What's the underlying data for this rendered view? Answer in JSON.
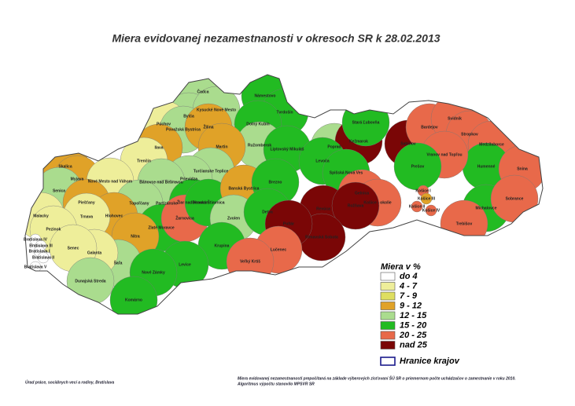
{
  "title": "Miera evidovanej nezamestnanosti v okresoch SR k 28.02.2013",
  "legend": {
    "title": "Miera v %",
    "items": [
      {
        "label": "do 4",
        "color": "#ffffff"
      },
      {
        "label": "4 - 7",
        "color": "#eeee9a"
      },
      {
        "label": "7 - 9",
        "color": "#dede60"
      },
      {
        "label": "9 - 12",
        "color": "#e0a228"
      },
      {
        "label": "12 - 15",
        "color": "#aadc8e"
      },
      {
        "label": "15 - 20",
        "color": "#22bb22"
      },
      {
        "label": "20 - 25",
        "color": "#e8694a"
      },
      {
        "label": "nad 25",
        "color": "#7a0606"
      }
    ],
    "border_label": "Hranice krajov",
    "border_color": "#1a1a8c"
  },
  "districts": [
    {
      "name": "Čadca",
      "color": "#aadc8e"
    },
    {
      "name": "Námestovo",
      "color": "#22bb22"
    },
    {
      "name": "Tvrdošín",
      "color": "#22bb22"
    },
    {
      "name": "Bytča",
      "color": "#aadc8e"
    },
    {
      "name": "Kysucké Nové Mesto",
      "color": "#aadc8e"
    },
    {
      "name": "Púchov",
      "color": "#eeee9a"
    },
    {
      "name": "Považská Bystrica",
      "color": "#aadc8e"
    },
    {
      "name": "Žilina",
      "color": "#e0a228"
    },
    {
      "name": "Dolný Kubín",
      "color": "#22bb22"
    },
    {
      "name": "Ružomberok",
      "color": "#aadc8e"
    },
    {
      "name": "Liptovský Mikuláš",
      "color": "#22bb22"
    },
    {
      "name": "Martin",
      "color": "#e0a228"
    },
    {
      "name": "Ilava",
      "color": "#e0a228"
    },
    {
      "name": "Trenčín",
      "color": "#eeee9a"
    },
    {
      "name": "Turčianske Teplice",
      "color": "#aadc8e"
    },
    {
      "name": "Prievidza",
      "color": "#aadc8e"
    },
    {
      "name": "Bánovce nad Bebravou",
      "color": "#aadc8e"
    },
    {
      "name": "Skalica",
      "color": "#e0a228"
    },
    {
      "name": "Myjava",
      "color": "#e0a228"
    },
    {
      "name": "Nové Mesto nad Váhom",
      "color": "#eeee9a"
    },
    {
      "name": "Senica",
      "color": "#aadc8e"
    },
    {
      "name": "Partizánske",
      "color": "#aadc8e"
    },
    {
      "name": "Topoľčany",
      "color": "#aadc8e"
    },
    {
      "name": "Piešťany",
      "color": "#e0a228"
    },
    {
      "name": "Hlohovec",
      "color": "#e0a228"
    },
    {
      "name": "Malacky",
      "color": "#eeee9a"
    },
    {
      "name": "Trnava",
      "color": "#eeee9a"
    },
    {
      "name": "Pezinok",
      "color": "#eeee9a"
    },
    {
      "name": "Zlaté Moravce",
      "color": "#22bb22"
    },
    {
      "name": "Žiar nad Hronom",
      "color": "#22bb22"
    },
    {
      "name": "Žarnovica",
      "color": "#e8694a"
    },
    {
      "name": "Banská Štiavnica",
      "color": "#22bb22"
    },
    {
      "name": "Banská Bystrica",
      "color": "#e0a228"
    },
    {
      "name": "Brezno",
      "color": "#22bb22"
    },
    {
      "name": "Zvolen",
      "color": "#aadc8e"
    },
    {
      "name": "Detva",
      "color": "#22bb22"
    },
    {
      "name": "Krupina",
      "color": "#22bb22"
    },
    {
      "name": "Poprad",
      "color": "#aadc8e"
    },
    {
      "name": "Kežmarok",
      "color": "#7a0606"
    },
    {
      "name": "Stará Ľubovňa",
      "color": "#22bb22"
    },
    {
      "name": "Sabinov",
      "color": "#7a0606"
    },
    {
      "name": "Bardejov",
      "color": "#e8694a"
    },
    {
      "name": "Svidník",
      "color": "#e8694a"
    },
    {
      "name": "Stropkov",
      "color": "#e8694a"
    },
    {
      "name": "Medzilaborce",
      "color": "#e8694a"
    },
    {
      "name": "Humenné",
      "color": "#22bb22"
    },
    {
      "name": "Snina",
      "color": "#e8694a"
    },
    {
      "name": "Vranov nad Topľou",
      "color": "#e8694a"
    },
    {
      "name": "Prešov",
      "color": "#22bb22"
    },
    {
      "name": "Levoča",
      "color": "#22bb22"
    },
    {
      "name": "Spišská Nová Ves",
      "color": "#22bb22"
    },
    {
      "name": "Gelnica",
      "color": "#e8694a"
    },
    {
      "name": "Košice - okolie",
      "color": "#e8694a"
    },
    {
      "name": "Košice I",
      "color": "#e8694a"
    },
    {
      "name": "Košice III",
      "color": "#e0a228"
    },
    {
      "name": "Košice II",
      "color": "#e8694a"
    },
    {
      "name": "Košice IV",
      "color": "#e8694a"
    },
    {
      "name": "Michalovce",
      "color": "#22bb22"
    },
    {
      "name": "Sobrance",
      "color": "#e8694a"
    },
    {
      "name": "Trebišov",
      "color": "#e8694a"
    },
    {
      "name": "Revúca",
      "color": "#7a0606"
    },
    {
      "name": "Rožňava",
      "color": "#7a0606"
    },
    {
      "name": "Rimavská Sobota",
      "color": "#7a0606"
    },
    {
      "name": "Poltár",
      "color": "#7a0606"
    },
    {
      "name": "Lučenec",
      "color": "#e8694a"
    },
    {
      "name": "Veľký Krtíš",
      "color": "#e8694a"
    },
    {
      "name": "Levice",
      "color": "#22bb22"
    },
    {
      "name": "Nitra",
      "color": "#e0a228"
    },
    {
      "name": "Šaľa",
      "color": "#aadc8e"
    },
    {
      "name": "Galanta",
      "color": "#eeee9a"
    },
    {
      "name": "Senec",
      "color": "#eeee9a"
    },
    {
      "name": "Dunajská Streda",
      "color": "#aadc8e"
    },
    {
      "name": "Nové Zámky",
      "color": "#22bb22"
    },
    {
      "name": "Komárno",
      "color": "#22bb22"
    },
    {
      "name": "Bratislava IV",
      "color": "#ffffff"
    },
    {
      "name": "Bratislava III",
      "color": "#ffffff"
    },
    {
      "name": "Bratislava I",
      "color": "#ffffff"
    },
    {
      "name": "Bratislava II",
      "color": "#ffffff"
    },
    {
      "name": "Bratislava V",
      "color": "#ffffff"
    }
  ],
  "footnotes": {
    "left": "Úrad práce, sociálnych vecí a rodiny, Bratislava",
    "right": [
      "Miera evidovanej nezamestnanosti prepočítaná na základe výberových zisťovaní ŠÚ SR o priemernom počte uchádzačov o zamestnanie v roku 2010.",
      "Algoritmus výpočtu stanovilo MPSVR SR"
    ]
  }
}
